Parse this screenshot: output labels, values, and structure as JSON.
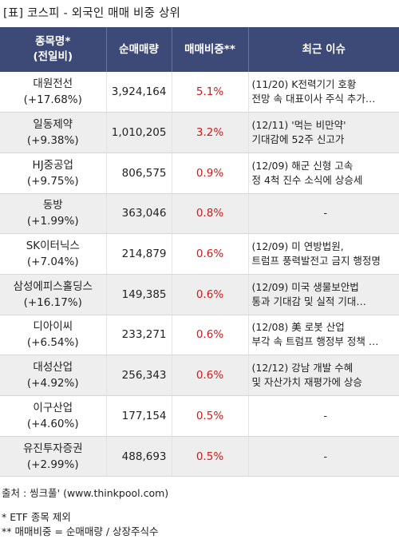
{
  "title": "[표] 코스피 - 외국인 매매 비중 상위",
  "headers": {
    "name_line1": "종목명*",
    "name_line2": "(전일비)",
    "net_volume": "순매매량",
    "ratio": "매매비중**",
    "issue": "최근 이슈"
  },
  "rows": [
    {
      "name": "대원전선",
      "change": "(+17.68%)",
      "net_volume": "3,924,164",
      "ratio": "5.1%",
      "issue_line1": "(11/20) K전력기기 호황",
      "issue_line2": " 전망 속 대표이사 주식 추가…"
    },
    {
      "name": "일동제약",
      "change": "(+9.38%)",
      "net_volume": "1,010,205",
      "ratio": "3.2%",
      "issue_line1": "(12/11) '먹는 비만약'",
      "issue_line2": " 기대감에 52주 신고가"
    },
    {
      "name": "HJ중공업",
      "change": "(+9.75%)",
      "net_volume": "806,575",
      "ratio": "0.9%",
      "issue_line1": "(12/09) 해군 신형 고속",
      "issue_line2": "정 4척 진수 소식에 상승세"
    },
    {
      "name": "동방",
      "change": "(+1.99%)",
      "net_volume": "363,046",
      "ratio": "0.8%",
      "issue_line1": "-",
      "issue_line2": ""
    },
    {
      "name": "SK이터닉스",
      "change": "(+7.04%)",
      "net_volume": "214,879",
      "ratio": "0.6%",
      "issue_line1": "(12/09) 미 연방법원,",
      "issue_line2": "트럼프 풍력발전고 금지 행정명"
    },
    {
      "name": "삼성에피스홀딩스",
      "change": "(+16.17%)",
      "net_volume": "149,385",
      "ratio": "0.6%",
      "issue_line1": "(12/09) 미국 생물보안법",
      "issue_line2": " 통과 기대감 및 실적 기대…"
    },
    {
      "name": "디아이씨",
      "change": "(+6.54%)",
      "net_volume": "233,271",
      "ratio": "0.6%",
      "issue_line1": "(12/08) 美 로봇 산업",
      "issue_line2": "부각 속 트럼프 행정부 정책 …"
    },
    {
      "name": "대성산업",
      "change": "(+4.92%)",
      "net_volume": "256,343",
      "ratio": "0.6%",
      "issue_line1": "(12/12) 강남 개발 수혜",
      "issue_line2": " 및 자산가치 재평가에 상승"
    },
    {
      "name": "이구산업",
      "change": "(+4.60%)",
      "net_volume": "177,154",
      "ratio": "0.5%",
      "issue_line1": "-",
      "issue_line2": ""
    },
    {
      "name": "유진투자증권",
      "change": "(+2.99%)",
      "net_volume": "488,693",
      "ratio": "0.5%",
      "issue_line1": "-",
      "issue_line2": ""
    }
  ],
  "footer": {
    "source": "출처 : 씽크풀' (www.thinkpool.com)",
    "note1": "* ETF 종목 제외",
    "note2": "** 매매비중 = 순매매량 / 상장주식수"
  },
  "colors": {
    "header_bg": "#3d4a77",
    "ratio_red": "#d21818",
    "alt_row": "#eeeeee"
  }
}
